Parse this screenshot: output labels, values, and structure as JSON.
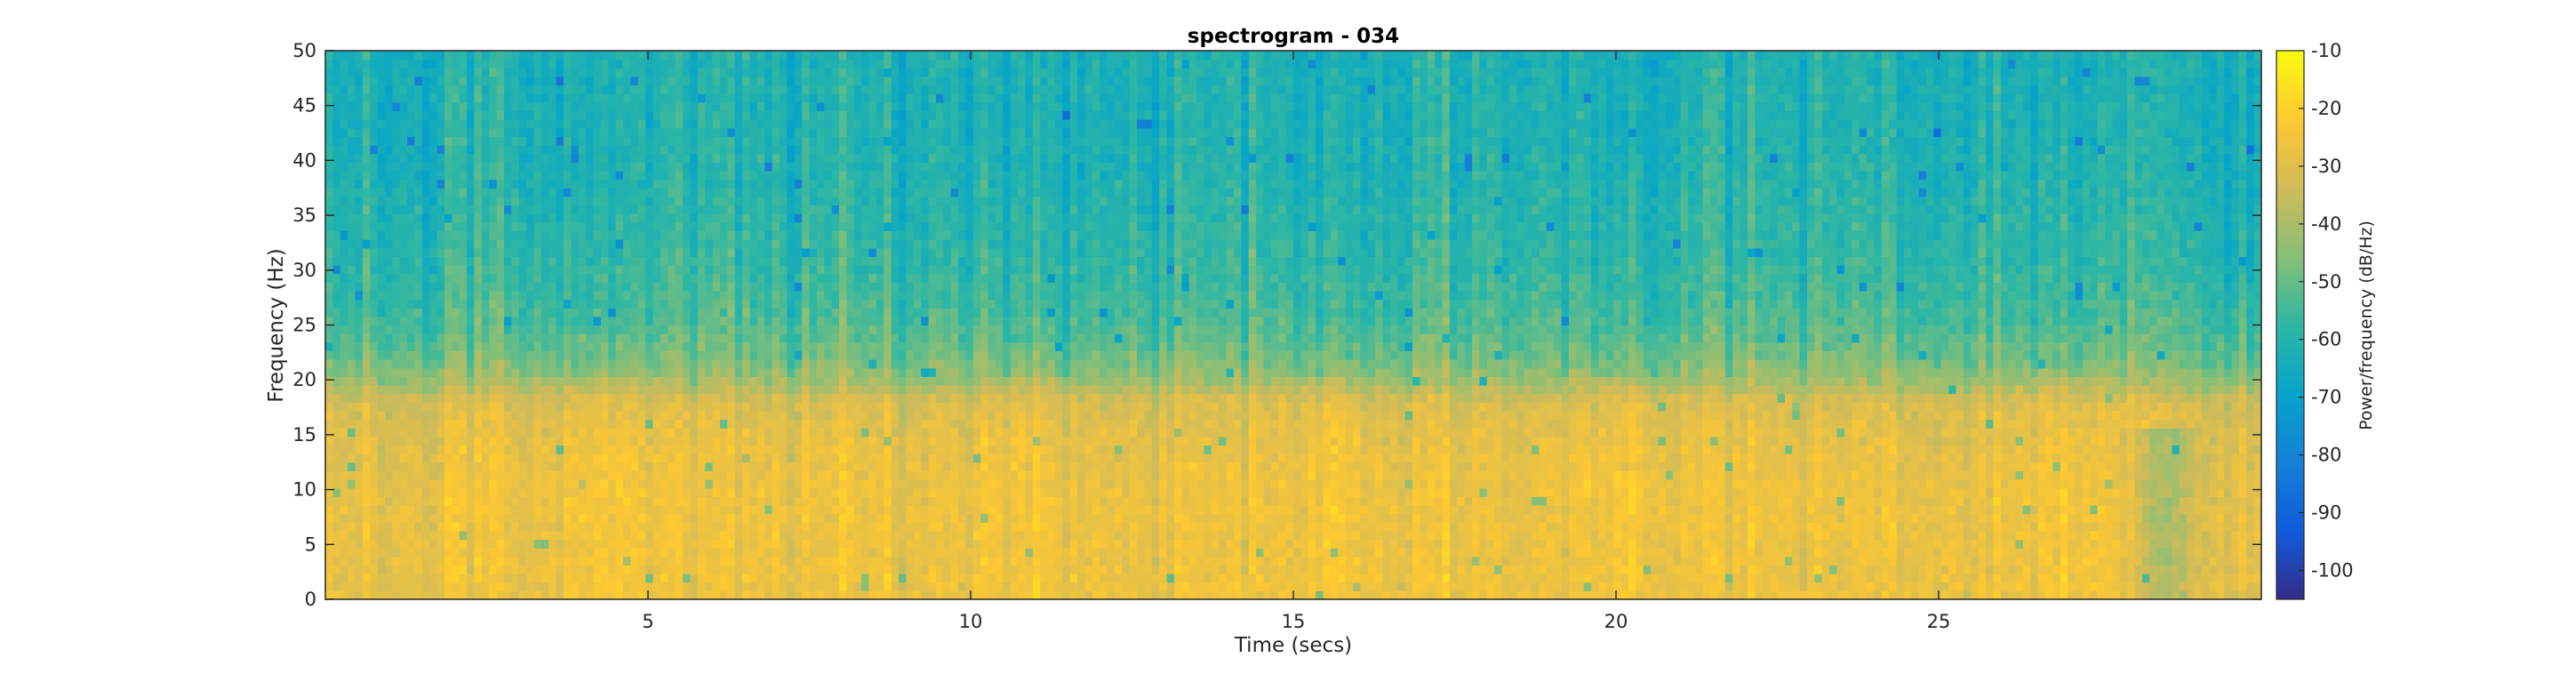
{
  "chart_data": {
    "type": "heatmap",
    "title": "spectrogram - 034",
    "xlabel": "Time (secs)",
    "ylabel": "Frequency (Hz)",
    "xlim": [
      0,
      30
    ],
    "ylim": [
      0,
      50
    ],
    "xticks": [
      5,
      10,
      15,
      20,
      25
    ],
    "yticks": [
      0,
      5,
      10,
      15,
      20,
      25,
      30,
      35,
      40,
      45,
      50
    ],
    "grid": false,
    "colormap": "parula",
    "colorbar": {
      "label": "Power/frequency (dB/Hz)",
      "range": [
        -105,
        -10
      ],
      "ticks": [
        -10,
        -20,
        -30,
        -40,
        -50,
        -60,
        -70,
        -80,
        -90,
        -100
      ],
      "colors": [
        "#352a87",
        "#0f5cdd",
        "#1481d6",
        "#06a4ca",
        "#2eb7a4",
        "#87bf77",
        "#d1bb59",
        "#fec832",
        "#f9fb0e"
      ]
    },
    "power_profile_db": {
      "frequency_hz": [
        0,
        5,
        10,
        15,
        18,
        20,
        22,
        25,
        30,
        40,
        50
      ],
      "typical_power": [
        -27,
        -27,
        -27,
        -29,
        -32,
        -42,
        -48,
        -53,
        -57,
        -61,
        -62
      ]
    },
    "time_hotspots_secs": [
      4.3,
      10.8,
      15.7,
      20.2,
      27.0
    ],
    "low_frequency_dip_secs": 28.5
  }
}
